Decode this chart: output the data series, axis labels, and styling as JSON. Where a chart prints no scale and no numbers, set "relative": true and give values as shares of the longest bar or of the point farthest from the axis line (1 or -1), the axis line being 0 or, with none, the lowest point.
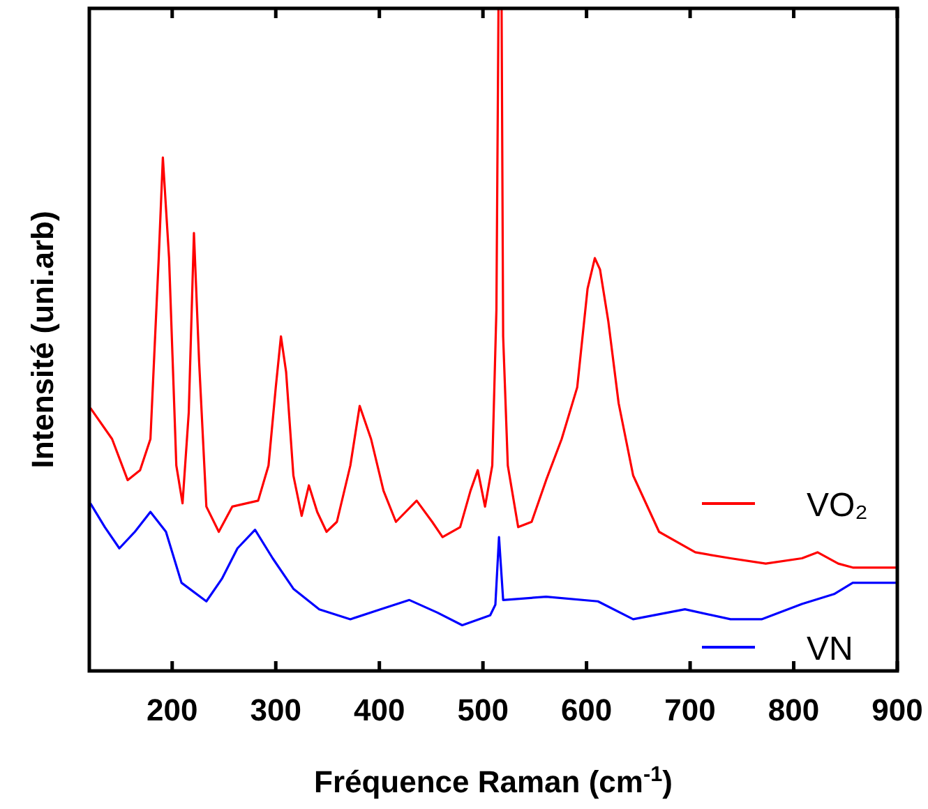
{
  "chart_data": {
    "type": "line",
    "relative": true,
    "xlabel": "Fréquence Raman (cm$^{-1}$)",
    "ylabel": "Intensité (uni.arb)",
    "xlim": [
      120,
      900
    ],
    "xticks": [
      200,
      300,
      400,
      500,
      600,
      700,
      800,
      900
    ],
    "legend": "bottom right",
    "grid": false,
    "marker": "none",
    "line_style": "solid",
    "series": [
      {
        "name": "VO₂",
        "color": "#ff0000",
        "x": [
          121,
          142,
          157,
          169,
          179,
          187,
          191,
          197,
          204,
          210,
          216,
          221,
          226,
          233,
          245,
          258,
          283,
          293,
          300,
          305,
          310,
          317,
          325,
          332,
          340,
          349,
          359,
          372,
          381,
          392,
          404,
          416,
          436,
          451,
          461,
          478,
          488,
          495,
          502,
          509,
          513,
          515,
          518,
          519.5,
          524,
          534,
          547,
          561,
          576,
          591,
          601,
          608,
          613,
          621,
          631,
          645,
          670,
          705,
          739,
          773,
          808,
          823,
          843,
          857,
          899
        ],
        "values": [
          0.397,
          0.35,
          0.288,
          0.303,
          0.35,
          0.623,
          0.775,
          0.623,
          0.31,
          0.253,
          0.39,
          0.661,
          0.467,
          0.248,
          0.21,
          0.248,
          0.257,
          0.31,
          0.428,
          0.505,
          0.451,
          0.295,
          0.234,
          0.28,
          0.24,
          0.21,
          0.225,
          0.31,
          0.4,
          0.35,
          0.272,
          0.225,
          0.257,
          0.225,
          0.202,
          0.217,
          0.272,
          0.303,
          0.248,
          0.31,
          0.545,
          1,
          1,
          0.505,
          0.31,
          0.217,
          0.225,
          0.288,
          0.35,
          0.428,
          0.577,
          0.623,
          0.606,
          0.528,
          0.404,
          0.295,
          0.21,
          0.179,
          0.17,
          0.162,
          0.17,
          0.179,
          0.162,
          0.156,
          0.156
        ]
      },
      {
        "name": "VN",
        "color": "#0000ff",
        "x": [
          121,
          135,
          149,
          164,
          179,
          194,
          209,
          233,
          248,
          263,
          280,
          297,
          317,
          342,
          372,
          401,
          429,
          456,
          480,
          507,
          512,
          515.5,
          519.5,
          561,
          611,
          645,
          695,
          739,
          769,
          808,
          839,
          857,
          899
        ],
        "values": [
          0.253,
          0.217,
          0.185,
          0.21,
          0.24,
          0.21,
          0.133,
          0.105,
          0.139,
          0.185,
          0.213,
          0.17,
          0.124,
          0.093,
          0.078,
          0.093,
          0.107,
          0.088,
          0.069,
          0.084,
          0.1,
          0.202,
          0.107,
          0.112,
          0.105,
          0.078,
          0.093,
          0.078,
          0.078,
          0.101,
          0.116,
          0.133,
          0.133
        ]
      }
    ]
  }
}
